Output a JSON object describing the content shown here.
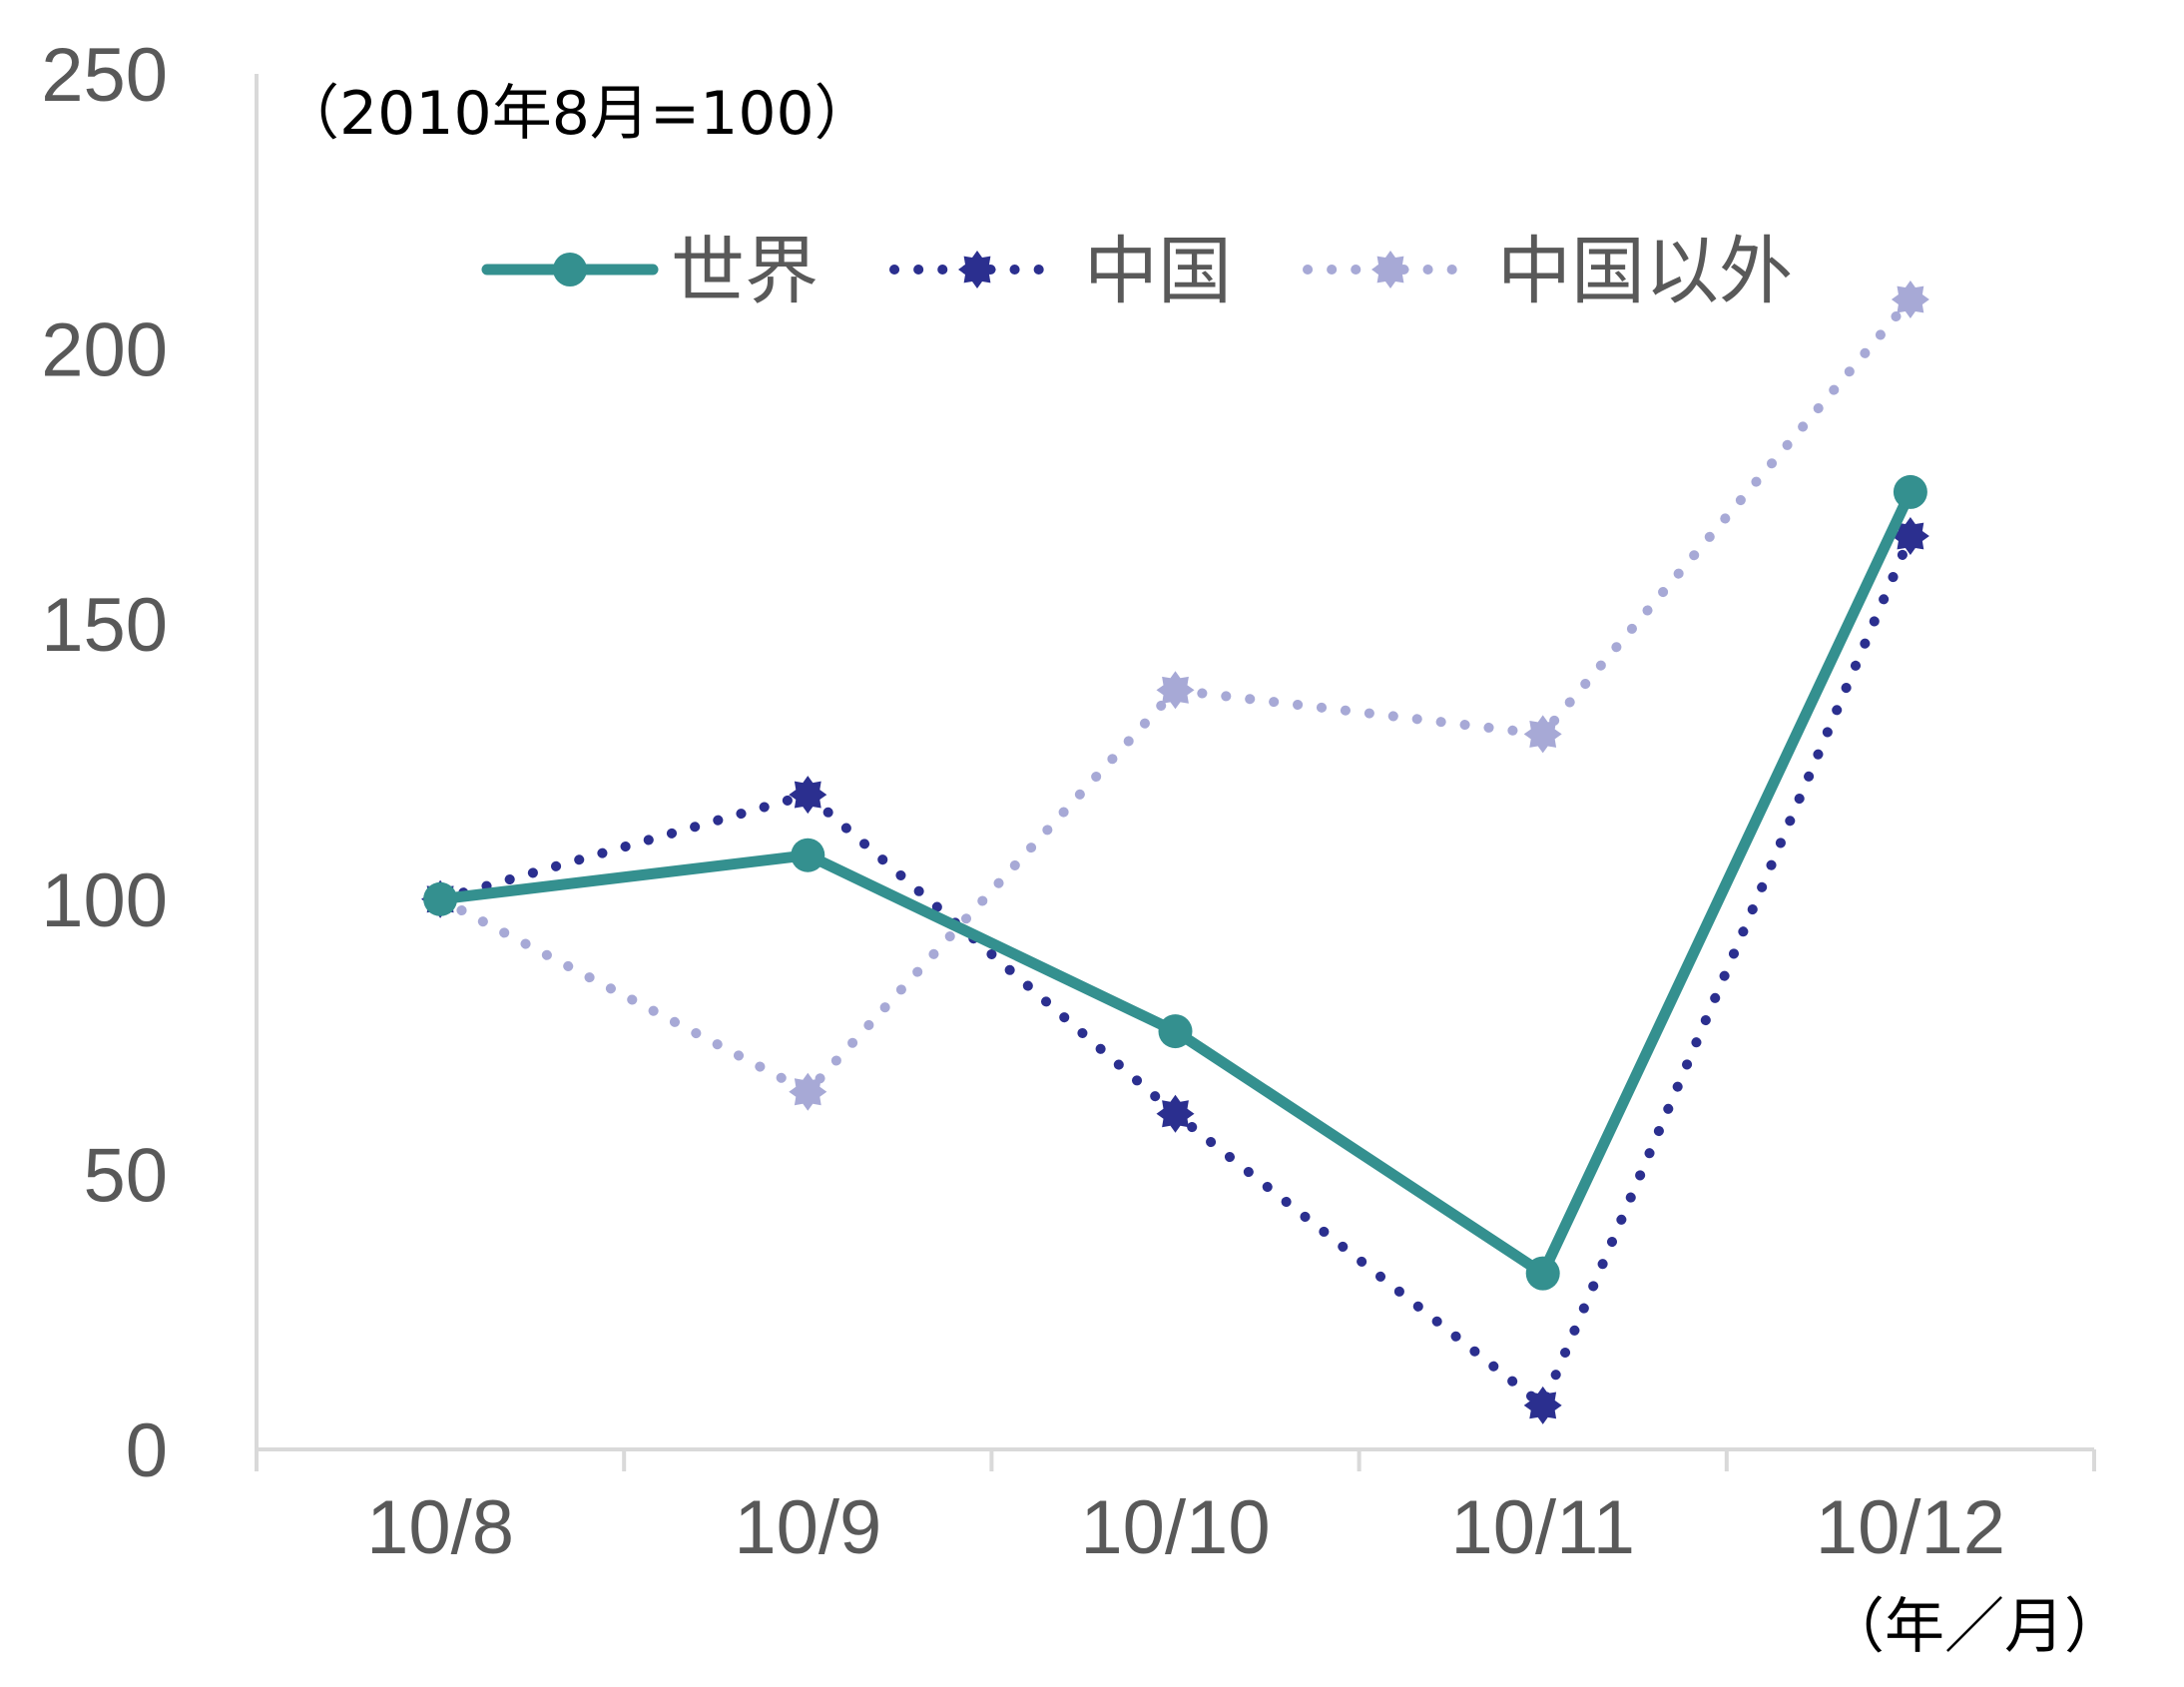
{
  "chart_data": {
    "type": "line",
    "unit_note": "（2010年8月=100）",
    "x_unit_label": "（年／月）",
    "categories": [
      "10/8",
      "10/9",
      "10/10",
      "10/11",
      "10/12"
    ],
    "ylim": [
      0,
      250
    ],
    "yticks": [
      "0",
      "50",
      "100",
      "150",
      "200",
      "250"
    ],
    "grid": false,
    "legend_position": "top",
    "series": [
      {
        "name": "世界",
        "values": [
          100,
          108,
          76,
          32,
          174
        ],
        "color": "#34908F",
        "style": "solid",
        "marker": "circle"
      },
      {
        "name": "中国",
        "values": [
          100,
          119,
          61,
          8,
          166
        ],
        "color": "#2B2F8F",
        "style": "dotted",
        "marker": "star"
      },
      {
        "name": "中国以外",
        "values": [
          100,
          65,
          138,
          130,
          209
        ],
        "color": "#A7A9D6",
        "style": "dotted",
        "marker": "star"
      }
    ]
  }
}
